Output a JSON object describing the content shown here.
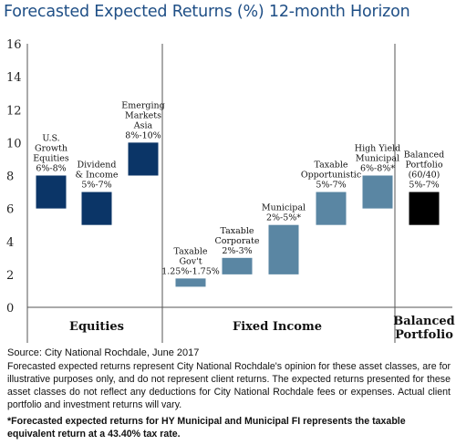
{
  "header": {
    "title": "Forecasted Expected Returns (%) 12-month Horizon"
  },
  "chart_data": {
    "type": "bar",
    "title": "Forecasted Expected Returns (%) 12-month Horizon",
    "ylim": [
      0,
      16
    ],
    "yticks": [
      "0",
      "2",
      "4",
      "6",
      "8",
      "10",
      "12",
      "14",
      "16"
    ],
    "grid": false,
    "groups": [
      "Equities",
      "Fixed Income",
      "Balanced Portfolio"
    ],
    "categories": [
      "U.S. Growth Equities",
      "Dividend & Income",
      "Emerging Markets Asia",
      "Taxable Gov't",
      "Taxable Corporate",
      "Municipal",
      "Taxable Opportunistic",
      "High Yield Municipal",
      "Balanced Portfolio (60/40)"
    ],
    "ranges": [
      {
        "label": "U.S. Growth Equities",
        "group": "Equities",
        "low": 6,
        "high": 8,
        "range_text": "6%-8%",
        "color": "#0b3567"
      },
      {
        "label": "Dividend & Income",
        "group": "Equities",
        "low": 5,
        "high": 7,
        "range_text": "5%-7%",
        "color": "#0b3567"
      },
      {
        "label": "Emerging Markets Asia",
        "group": "Equities",
        "low": 8,
        "high": 10,
        "range_text": "8%-10%",
        "color": "#0b3567"
      },
      {
        "label": "Taxable Gov't",
        "group": "Fixed Income",
        "low": 1.25,
        "high": 1.75,
        "range_text": "1.25%-1.75%",
        "color": "#5a86a3"
      },
      {
        "label": "Taxable Corporate",
        "group": "Fixed Income",
        "low": 2,
        "high": 3,
        "range_text": "2%-3%",
        "color": "#5a86a3"
      },
      {
        "label": "Municipal",
        "group": "Fixed Income",
        "low": 2,
        "high": 5,
        "range_text": "2%-5%*",
        "color": "#5a86a3"
      },
      {
        "label": "Taxable Opportunistic",
        "group": "Fixed Income",
        "low": 5,
        "high": 7,
        "range_text": "5%-7%",
        "color": "#5a86a3"
      },
      {
        "label": "High Yield Municipal",
        "group": "Fixed Income",
        "low": 6,
        "high": 8,
        "range_text": "6%-8%*",
        "color": "#5a86a3"
      },
      {
        "label": "Balanced Portfolio (60/40)",
        "group": "Balanced Portfolio",
        "low": 5,
        "high": 7,
        "range_text": "5%-7%",
        "color": "#000000"
      }
    ],
    "bar_labels": [
      [
        "U.S.",
        "Growth",
        "Equities",
        "6%-8%"
      ],
      [
        "Dividend",
        "& Income",
        "5%-7%"
      ],
      [
        "Emerging",
        "Markets",
        "Asia",
        "8%-10%"
      ],
      [
        "Taxable",
        "Gov't",
        "1.25%-1.75%"
      ],
      [
        "Taxable",
        "Corporate",
        "2%-3%"
      ],
      [
        "Municipal",
        "2%-5%*"
      ],
      [
        "Taxable",
        "Opportunistic",
        "5%-7%"
      ],
      [
        "High Yield",
        "Municipal",
        "6%-8%*"
      ],
      [
        "Balanced",
        "Portfolio",
        "(60/40)",
        "5%-7%"
      ]
    ],
    "group_labels": [
      [
        "Equities"
      ],
      [
        "Fixed Income"
      ],
      [
        "Balanced",
        "Portfolio"
      ]
    ]
  },
  "footer": {
    "source": "Source: City National Rochdale, June 2017",
    "disclaimer": "Forecasted expected returns represent City National Rochdale's opinion for these asset classes, are for illustrative purposes only, and do not represent client returns. The expected returns presented for these asset classes do not reflect any deductions for City National Rochdale fees or expenses. Actual client portfolio and investment returns will vary.",
    "footnote": "*Forecasted expected returns for HY Municipal and Municipal FI represents the taxable equivalent return at a 43.40% tax rate."
  }
}
